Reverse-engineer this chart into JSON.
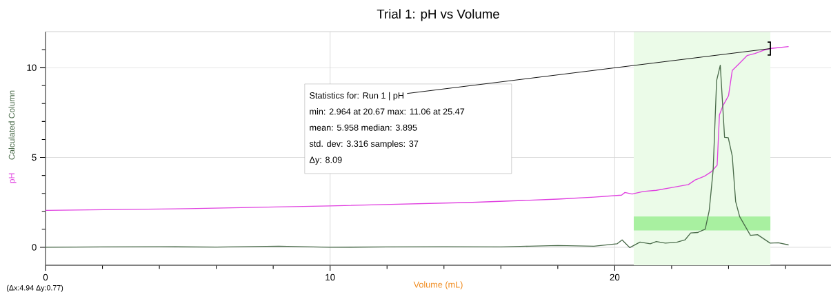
{
  "chart_data": {
    "type": "line",
    "title": "Trial 1: pH vs Volume",
    "xlabel": "Volume (mL)",
    "xlim": [
      0,
      27.6
    ],
    "ylim": [
      -1,
      12
    ],
    "xticks": [
      0,
      {
        "value": 2,
        "label": null
      },
      {
        "value": 4,
        "label": null
      },
      {
        "value": 6,
        "label": null
      },
      {
        "value": 8,
        "label": null
      },
      10,
      {
        "value": 12,
        "label": null
      },
      {
        "value": 14,
        "label": null
      },
      {
        "value": 16,
        "label": null
      },
      {
        "value": 18,
        "label": null
      },
      20,
      {
        "value": 22,
        "label": null
      },
      {
        "value": 24,
        "label": null
      },
      {
        "value": 26,
        "label": null
      }
    ],
    "yticks": [
      0,
      {
        "value": 1,
        "label": null
      },
      {
        "value": 2,
        "label": null
      },
      {
        "value": 3,
        "label": null
      },
      {
        "value": 4,
        "label": null
      },
      5,
      {
        "value": 6,
        "label": null
      },
      {
        "value": 7,
        "label": null
      },
      {
        "value": 8,
        "label": null
      },
      {
        "value": 9,
        "label": null
      },
      10,
      {
        "value": 11,
        "label": null
      }
    ],
    "grid": true,
    "series": [
      {
        "name": "pH",
        "color": "#e040e0",
        "x": [
          0,
          5,
          10,
          15,
          18,
          19.27,
          20.24,
          20.36,
          20.61,
          21.01,
          21.46,
          22.02,
          22.59,
          22.83,
          23.16,
          23.4,
          23.6,
          23.68,
          23.8,
          24.0,
          24.13,
          24.37,
          24.65,
          24.93,
          25.26,
          25.5,
          26.11
        ],
        "values": [
          2.05,
          2.15,
          2.3,
          2.5,
          2.68,
          2.79,
          2.9,
          3.05,
          2.96,
          3.11,
          3.17,
          3.33,
          3.49,
          3.75,
          3.96,
          4.21,
          4.57,
          7.37,
          7.87,
          8.44,
          9.84,
          10.22,
          10.67,
          10.79,
          10.98,
          11.07,
          11.17
        ]
      },
      {
        "name": "Calculated Column",
        "color": "#4a6b4a",
        "x": [
          0,
          2,
          4,
          6,
          8.2,
          10,
          12,
          14,
          16,
          17,
          18,
          19.27,
          20.08,
          20.26,
          20.53,
          20.89,
          21.25,
          21.46,
          21.78,
          22.18,
          22.47,
          22.67,
          22.91,
          23.18,
          23.32,
          23.46,
          23.58,
          23.71,
          23.86,
          23.99,
          24.13,
          24.25,
          24.39,
          24.77,
          25.02,
          25.46,
          25.75,
          26.11
        ],
        "values": [
          0,
          0.02,
          0.03,
          0.01,
          0.06,
          0.0,
          0.02,
          0.03,
          0.02,
          0.06,
          0.1,
          0.06,
          0.19,
          0.41,
          -0.02,
          0.29,
          0.19,
          0.32,
          0.23,
          0.28,
          0.41,
          0.8,
          0.82,
          1.01,
          2.03,
          4.32,
          9.27,
          10.13,
          6.12,
          6.1,
          5.08,
          2.54,
          1.71,
          0.66,
          0.7,
          0.23,
          0.25,
          0.13
        ]
      },
      {
        "type": "area",
        "color": "#a8f0a0",
        "x": [
          20.67,
          25.47
        ],
        "values": [
          null,
          null
        ],
        "lower": [
          0.94,
          0.94
        ],
        "upper": [
          1.71,
          1.71
        ]
      }
    ],
    "bands": [
      {
        "axis": "x",
        "from": 20.67,
        "to": 25.47,
        "color": "#ebfbe8"
      }
    ],
    "annotations": [
      {
        "text": "Statistics for: Run 1 | pH",
        "x": 25.47,
        "y": 11.06
      },
      "min: 2.964 at 20.67 max: 11.06 at 25.47",
      "mean: 5.958 median: 3.895",
      "std. dev: 3.316 samples: 37",
      "Δy: 8.09",
      "(Δx:4.94 Δy:0.77)"
    ]
  }
}
